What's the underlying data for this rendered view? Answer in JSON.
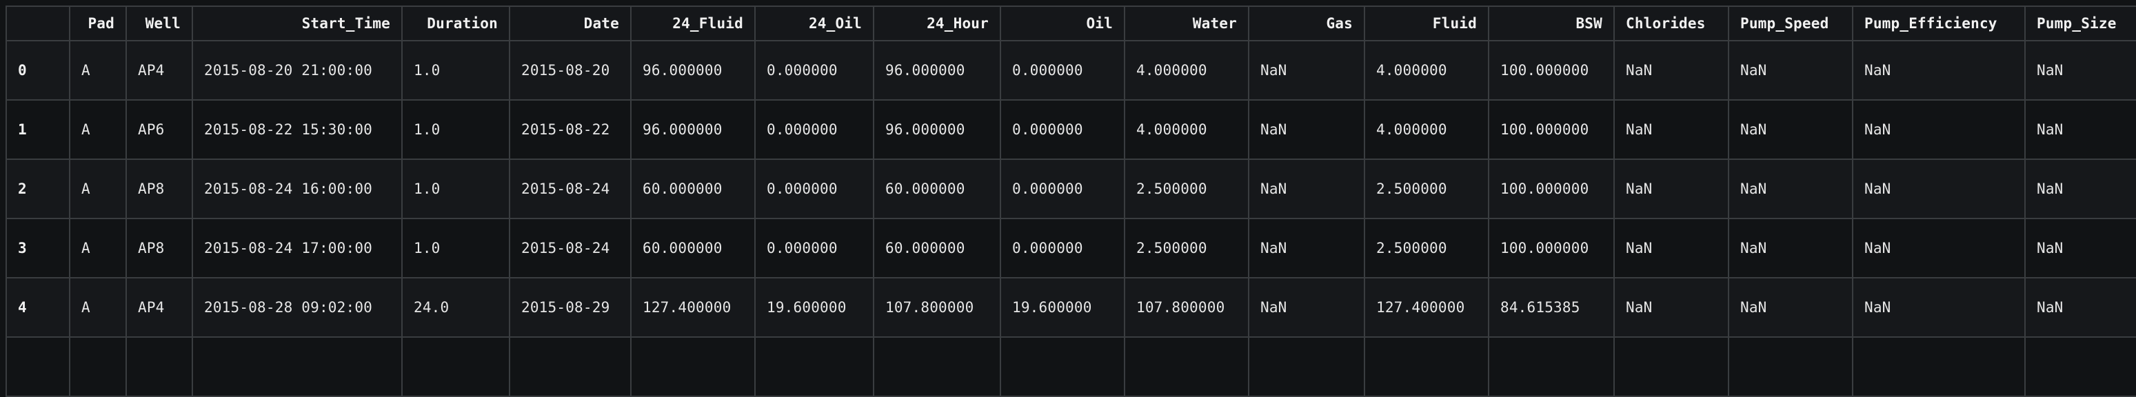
{
  "table": {
    "columns": [
      {
        "key": "index",
        "label": "",
        "align": "l"
      },
      {
        "key": "Pad",
        "label": "Pad",
        "align": "r"
      },
      {
        "key": "Well",
        "label": "Well",
        "align": "r"
      },
      {
        "key": "Start_Time",
        "label": "Start_Time",
        "align": "r"
      },
      {
        "key": "Duration",
        "label": "Duration",
        "align": "r"
      },
      {
        "key": "Date",
        "label": "Date",
        "align": "r"
      },
      {
        "key": "24_Fluid",
        "label": "24_Fluid",
        "align": "r"
      },
      {
        "key": "24_Oil",
        "label": "24_Oil",
        "align": "r"
      },
      {
        "key": "24_Hour",
        "label": "24_Hour",
        "align": "r"
      },
      {
        "key": "Oil",
        "label": "Oil",
        "align": "r"
      },
      {
        "key": "Water",
        "label": "Water",
        "align": "r"
      },
      {
        "key": "Gas",
        "label": "Gas",
        "align": "r"
      },
      {
        "key": "Fluid",
        "label": "Fluid",
        "align": "r"
      },
      {
        "key": "BSW",
        "label": "BSW",
        "align": "r"
      },
      {
        "key": "Chlorides",
        "label": "Chlorides",
        "align": "l"
      },
      {
        "key": "Pump_Speed",
        "label": "Pump_Speed",
        "align": "l"
      },
      {
        "key": "Pump_Efficiency",
        "label": "Pump_Efficiency",
        "align": "l"
      },
      {
        "key": "Pump_Size",
        "label": "Pump_Size",
        "align": "l"
      }
    ],
    "rows": [
      {
        "index": "0",
        "Pad": "A",
        "Well": "AP4",
        "Start_Time": "2015-08-20 21:00:00",
        "Duration": "1.0",
        "Date": "2015-08-20",
        "24_Fluid": "96.000000",
        "24_Oil": "0.000000",
        "24_Hour": "96.000000",
        "Oil": "0.000000",
        "Water": "4.000000",
        "Gas": "NaN",
        "Fluid": "4.000000",
        "BSW": "100.000000",
        "Chlorides": "NaN",
        "Pump_Speed": "NaN",
        "Pump_Efficiency": "NaN",
        "Pump_Size": "NaN"
      },
      {
        "index": "1",
        "Pad": "A",
        "Well": "AP6",
        "Start_Time": "2015-08-22 15:30:00",
        "Duration": "1.0",
        "Date": "2015-08-22",
        "24_Fluid": "96.000000",
        "24_Oil": "0.000000",
        "24_Hour": "96.000000",
        "Oil": "0.000000",
        "Water": "4.000000",
        "Gas": "NaN",
        "Fluid": "4.000000",
        "BSW": "100.000000",
        "Chlorides": "NaN",
        "Pump_Speed": "NaN",
        "Pump_Efficiency": "NaN",
        "Pump_Size": "NaN"
      },
      {
        "index": "2",
        "Pad": "A",
        "Well": "AP8",
        "Start_Time": "2015-08-24 16:00:00",
        "Duration": "1.0",
        "Date": "2015-08-24",
        "24_Fluid": "60.000000",
        "24_Oil": "0.000000",
        "24_Hour": "60.000000",
        "Oil": "0.000000",
        "Water": "2.500000",
        "Gas": "NaN",
        "Fluid": "2.500000",
        "BSW": "100.000000",
        "Chlorides": "NaN",
        "Pump_Speed": "NaN",
        "Pump_Efficiency": "NaN",
        "Pump_Size": "NaN"
      },
      {
        "index": "3",
        "Pad": "A",
        "Well": "AP8",
        "Start_Time": "2015-08-24 17:00:00",
        "Duration": "1.0",
        "Date": "2015-08-24",
        "24_Fluid": "60.000000",
        "24_Oil": "0.000000",
        "24_Hour": "60.000000",
        "Oil": "0.000000",
        "Water": "2.500000",
        "Gas": "NaN",
        "Fluid": "2.500000",
        "BSW": "100.000000",
        "Chlorides": "NaN",
        "Pump_Speed": "NaN",
        "Pump_Efficiency": "NaN",
        "Pump_Size": "NaN"
      },
      {
        "index": "4",
        "Pad": "A",
        "Well": "AP4",
        "Start_Time": "2015-08-28 09:02:00",
        "Duration": "24.0",
        "Date": "2015-08-29",
        "24_Fluid": "127.400000",
        "24_Oil": "19.600000",
        "24_Hour": "107.800000",
        "Oil": "19.600000",
        "Water": "107.800000",
        "Gas": "NaN",
        "Fluid": "127.400000",
        "BSW": "84.615385",
        "Chlorides": "NaN",
        "Pump_Speed": "NaN",
        "Pump_Efficiency": "NaN",
        "Pump_Size": "NaN"
      }
    ]
  }
}
